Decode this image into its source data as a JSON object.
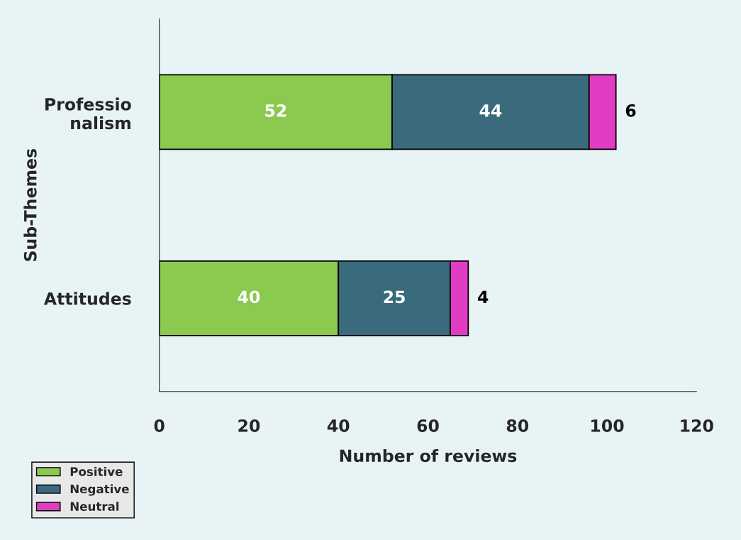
{
  "chart_data": {
    "type": "bar",
    "orientation": "horizontal",
    "stacked": true,
    "data_labels": true,
    "categories": [
      "Professio\nnalism",
      "Attitudes"
    ],
    "series": [
      {
        "name": "Positive",
        "color": "#8bc94f",
        "values": [
          52,
          40
        ]
      },
      {
        "name": "Negative",
        "color": "#396b7d",
        "values": [
          44,
          25
        ]
      },
      {
        "name": "Neutral",
        "color": "#e23cc4",
        "values": [
          6,
          4
        ]
      }
    ],
    "xlabel": "Number of reviews",
    "ylabel": "Sub-Themes",
    "xlim": [
      0,
      120
    ],
    "xticks": [
      0,
      20,
      40,
      60,
      80,
      100,
      120
    ],
    "grid": false,
    "legend": "bottom left"
  }
}
